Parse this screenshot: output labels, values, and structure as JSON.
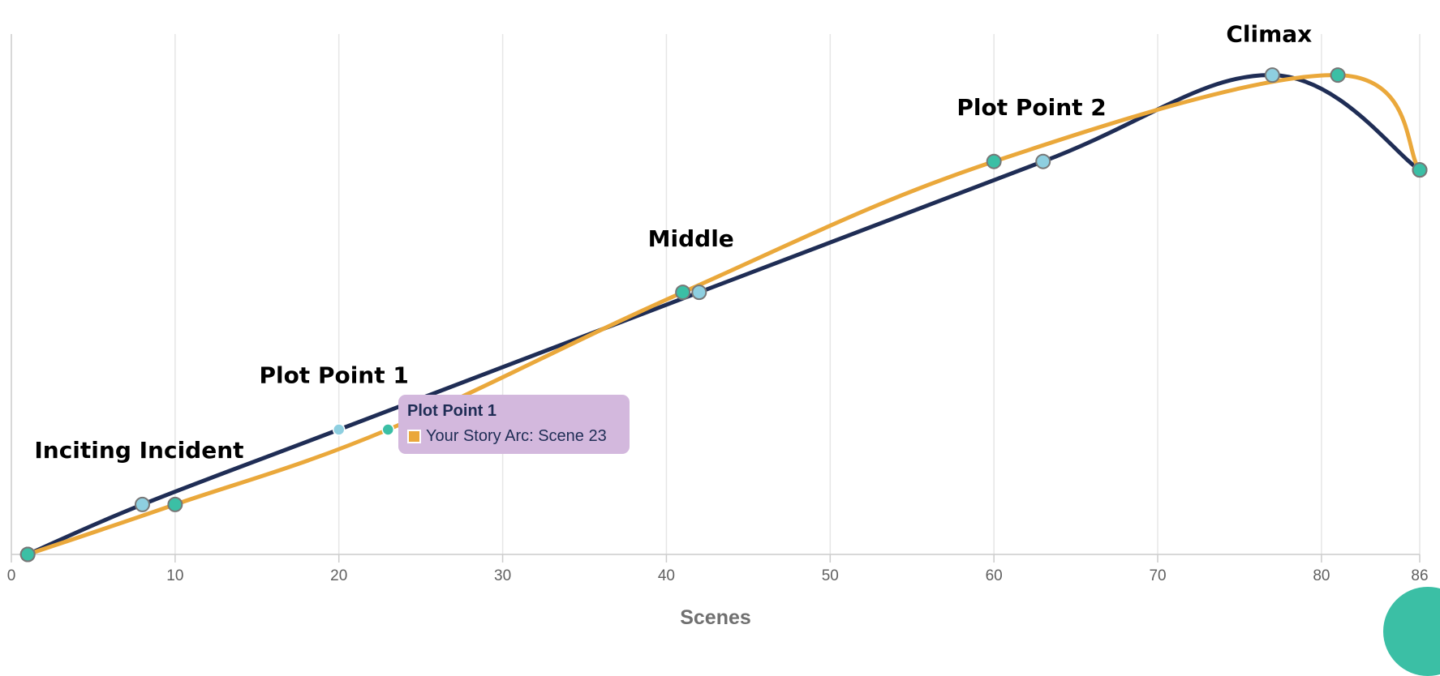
{
  "chart_data": {
    "type": "line",
    "xlabel": "Scenes",
    "ylabel": "",
    "xlim": [
      0,
      86
    ],
    "ylim": [
      0,
      100
    ],
    "x_ticks": [
      0,
      10,
      20,
      30,
      40,
      50,
      60,
      70,
      80,
      86
    ],
    "x_tick_labels": [
      "0",
      "10",
      "20",
      "30",
      "40",
      "50",
      "60",
      "70",
      "80",
      "86"
    ],
    "grid": "vertical",
    "series": [
      {
        "key": "reference",
        "name": "",
        "color": "#1f2d55",
        "marker_color": "#8ecfe0",
        "points": [
          [
            1,
            0
          ],
          [
            8,
            10
          ],
          [
            20,
            25
          ],
          [
            42,
            52.5
          ],
          [
            63,
            78.7
          ],
          [
            77,
            96
          ],
          [
            86,
            77
          ]
        ]
      },
      {
        "key": "story",
        "name": "Your Story Arc",
        "color": "#eaa83b",
        "marker_color": "#3bbfa5",
        "points": [
          [
            1,
            0
          ],
          [
            10,
            10
          ],
          [
            23,
            25
          ],
          [
            41,
            52.5
          ],
          [
            60,
            78.7
          ],
          [
            81,
            96
          ],
          [
            86,
            77
          ]
        ]
      }
    ],
    "annotations": [
      {
        "text": "Inciting Incident",
        "x": 7.8,
        "y": 19.3
      },
      {
        "text": "Plot Point 1",
        "x": 19.7,
        "y": 34.3
      },
      {
        "text": "Middle",
        "x": 41.5,
        "y": 61.7
      },
      {
        "text": "Plot Point 2",
        "x": 62.3,
        "y": 88
      },
      {
        "text": "Climax",
        "x": 76.8,
        "y": 102.7
      }
    ],
    "tooltip": {
      "title": "Plot Point 1",
      "series_name": "Your Story Arc",
      "label": "Your Story Arc: Scene 23",
      "swatch_color": "#eaa83b"
    }
  },
  "decor": {
    "corner_color": "#3bbfa5"
  }
}
